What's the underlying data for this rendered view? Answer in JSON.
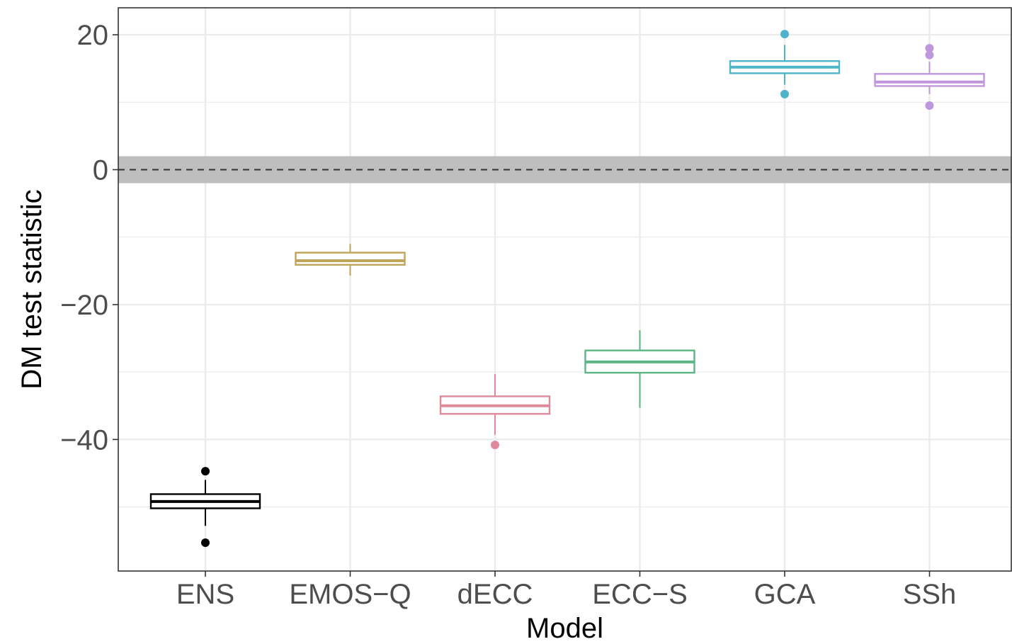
{
  "chart_data": {
    "type": "boxplot",
    "xlabel": "Model",
    "ylabel": "DM test statistic",
    "ylim": [
      -59.5,
      24
    ],
    "y_ticks": [
      20,
      0,
      -20,
      -40
    ],
    "y_tick_labels": [
      "20",
      "0",
      "−20",
      "−40"
    ],
    "grid": true,
    "reference_line": {
      "y": 0,
      "style": "dashed"
    },
    "reference_band": [
      -2,
      2
    ],
    "categories": [
      "ENS",
      "EMOS−Q",
      "dECC",
      "ECC−S",
      "GCA",
      "SSh"
    ],
    "boxes": [
      {
        "name": "ENS",
        "color": "#000000",
        "whisker_low": -52.8,
        "q1": -50.2,
        "median": -49.2,
        "q3": -48.1,
        "whisker_high": -46.0,
        "outliers": [
          -44.7,
          -55.3
        ]
      },
      {
        "name": "EMOS−Q",
        "color": "#bfa55a",
        "whisker_low": -15.7,
        "q1": -14.1,
        "median": -13.5,
        "q3": -12.3,
        "whisker_high": -11.0,
        "outliers": []
      },
      {
        "name": "dECC",
        "color": "#e0899a",
        "whisker_low": -39.3,
        "q1": -36.2,
        "median": -35.0,
        "q3": -33.6,
        "whisker_high": -30.3,
        "outliers": [
          -40.8
        ]
      },
      {
        "name": "ECC−S",
        "color": "#5cb585",
        "whisker_low": -35.3,
        "q1": -30.1,
        "median": -28.5,
        "q3": -26.8,
        "whisker_high": -23.8,
        "outliers": []
      },
      {
        "name": "GCA",
        "color": "#4fb3cc",
        "whisker_low": 12.6,
        "q1": 14.3,
        "median": 15.2,
        "q3": 16.1,
        "whisker_high": 18.5,
        "outliers": [
          20.1,
          11.2
        ]
      },
      {
        "name": "SSh",
        "color": "#c096dc",
        "whisker_low": 11.2,
        "q1": 12.4,
        "median": 13.0,
        "q3": 14.2,
        "whisker_high": 16.0,
        "outliers": [
          18.0,
          17.0,
          9.5
        ]
      }
    ]
  }
}
